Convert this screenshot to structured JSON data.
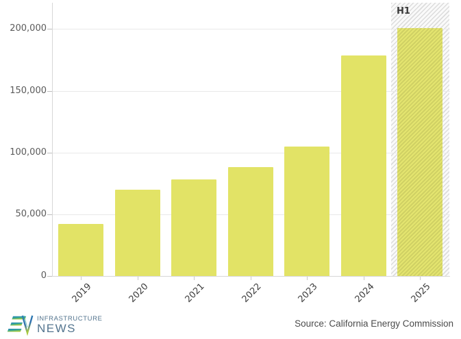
{
  "chart_data": {
    "type": "bar",
    "categories": [
      "2019",
      "2020",
      "2021",
      "2022",
      "2023",
      "2024",
      "2025"
    ],
    "values": [
      42000,
      70000,
      78000,
      88000,
      105000,
      178500,
      201000
    ],
    "title": "",
    "xlabel": "",
    "ylabel": "",
    "ylim": [
      0,
      221000
    ],
    "yticks": [
      0,
      50000,
      100000,
      150000,
      200000
    ],
    "ytick_labels": [
      "0",
      "50,000",
      "100,000",
      "150,000",
      "200,000"
    ],
    "grid": true,
    "legend": false,
    "highlight": {
      "category": "2025",
      "label": "H1",
      "style": "hatched-band"
    },
    "colors": {
      "bar": "#e2e366",
      "hatch_stripe": "#dcdcdc",
      "hatch_bg": "#fafafa"
    }
  },
  "footer": {
    "logo": {
      "line1": "INFRASTRUCTURE",
      "line2": "NEWS"
    },
    "source": "Source: California Energy Commission"
  }
}
